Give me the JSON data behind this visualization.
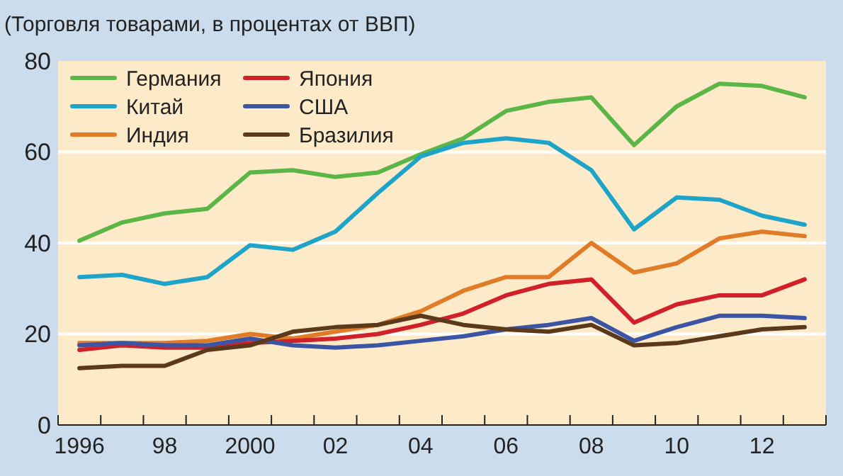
{
  "chart_data": {
    "type": "line",
    "title": "(Торговля товарами, в процентах от ВВП)",
    "x": [
      1996,
      1997,
      1998,
      1999,
      2000,
      2001,
      2002,
      2003,
      2004,
      2005,
      2006,
      2007,
      2008,
      2009,
      2010,
      2011,
      2012,
      2013
    ],
    "xlim": [
      1995.5,
      2013.5
    ],
    "xticks": [
      {
        "value": 1995.5,
        "label": null
      },
      {
        "value": 1996,
        "label": "1996"
      },
      {
        "value": 1996.5,
        "label": null
      },
      {
        "value": 1997.5,
        "label": null
      },
      {
        "value": 1998,
        "label": "98"
      },
      {
        "value": 1998.5,
        "label": null
      },
      {
        "value": 1999.5,
        "label": null
      },
      {
        "value": 2000,
        "label": "2000"
      },
      {
        "value": 2000.5,
        "label": null
      },
      {
        "value": 2001.5,
        "label": null
      },
      {
        "value": 2002,
        "label": "02"
      },
      {
        "value": 2002.5,
        "label": null
      },
      {
        "value": 2003.5,
        "label": null
      },
      {
        "value": 2004,
        "label": "04"
      },
      {
        "value": 2004.5,
        "label": null
      },
      {
        "value": 2005.5,
        "label": null
      },
      {
        "value": 2006,
        "label": "06"
      },
      {
        "value": 2006.5,
        "label": null
      },
      {
        "value": 2007.5,
        "label": null
      },
      {
        "value": 2008,
        "label": "08"
      },
      {
        "value": 2008.5,
        "label": null
      },
      {
        "value": 2009.5,
        "label": null
      },
      {
        "value": 2010,
        "label": "10"
      },
      {
        "value": 2010.5,
        "label": null
      },
      {
        "value": 2011.5,
        "label": null
      },
      {
        "value": 2012,
        "label": "12"
      },
      {
        "value": 2012.5,
        "label": null
      },
      {
        "value": 2013.5,
        "label": null
      }
    ],
    "ylim": [
      0,
      80
    ],
    "yticks": [
      0,
      20,
      40,
      60,
      80
    ],
    "grid": "y",
    "legend": "top left",
    "series": [
      {
        "name": "Германия",
        "color": "#5cb547",
        "values": [
          40.5,
          44.5,
          46.5,
          47.5,
          55.5,
          56,
          54.5,
          55.5,
          59.5,
          63,
          69,
          71,
          72,
          61.5,
          70,
          75,
          74.5,
          72
        ]
      },
      {
        "name": "Китай",
        "color": "#1ea3c9",
        "values": [
          32.5,
          33,
          31,
          32.5,
          39.5,
          38.5,
          42.5,
          51,
          59,
          62,
          63,
          62,
          56,
          43,
          50,
          49.5,
          46,
          44
        ]
      },
      {
        "name": "Индия",
        "color": "#e07b28",
        "values": [
          18,
          18,
          18,
          18.5,
          20,
          19,
          20.5,
          22,
          25,
          29.5,
          32.5,
          32.5,
          40,
          33.5,
          35.5,
          41,
          42.5,
          41.5
        ]
      },
      {
        "name": "Япония",
        "color": "#d0202a",
        "values": [
          16.5,
          17.5,
          17,
          17,
          18,
          18.5,
          19,
          20,
          22,
          24.5,
          28.5,
          31,
          32,
          22.5,
          26.5,
          28.5,
          28.5,
          32
        ]
      },
      {
        "name": "США",
        "color": "#3c54a4",
        "values": [
          17.5,
          18,
          17.5,
          17.5,
          19,
          17.5,
          17,
          17.5,
          18.5,
          19.5,
          21,
          22,
          23.5,
          18.5,
          21.5,
          24,
          24,
          23.5
        ]
      },
      {
        "name": "Бразилия",
        "color": "#5a3a1a",
        "values": [
          12.5,
          13,
          13,
          16.5,
          17.5,
          20.5,
          21.5,
          22,
          24,
          22,
          21,
          20.5,
          22,
          17.5,
          18,
          19.5,
          21,
          21.5
        ]
      }
    ]
  }
}
